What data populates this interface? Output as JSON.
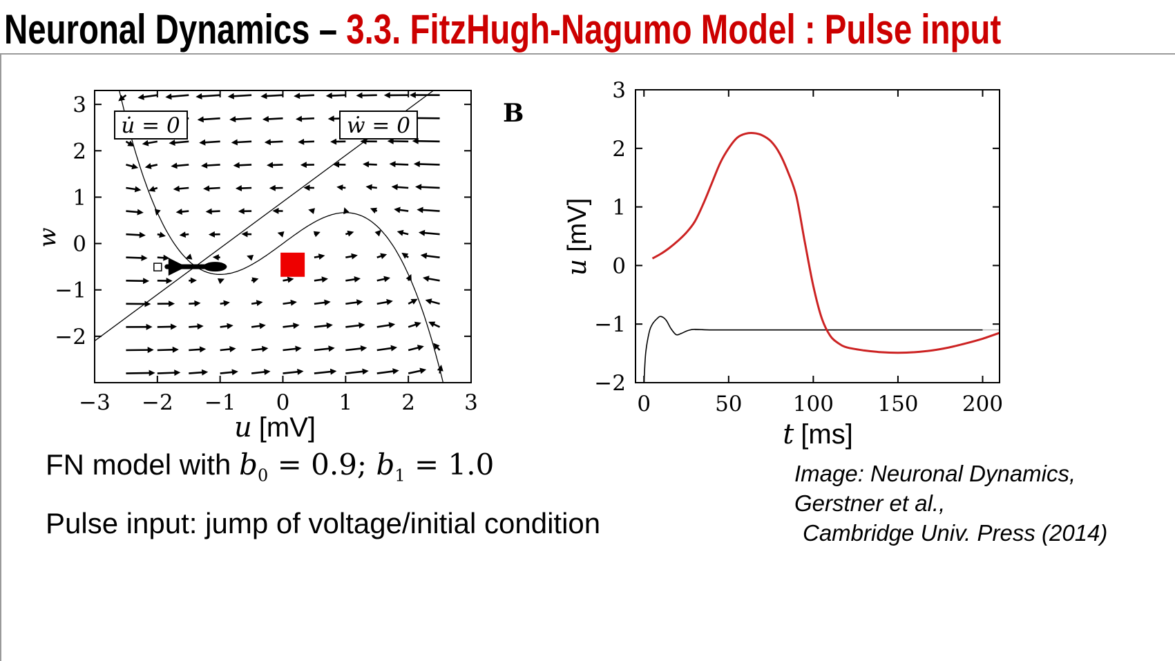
{
  "slide": {
    "title_main": "Neuronal Dynamics – ",
    "title_sub": "3.3.  FitzHugh-Nagumo Model : Pulse input"
  },
  "caption": {
    "prefix": "FN model with ",
    "b0_symbol": "b",
    "b0_sub": "0",
    "b0_eq": " = 0.9; ",
    "b1_symbol": "b",
    "b1_sub": "1",
    "b1_eq": " = 1.0"
  },
  "pulse_text": "Pulse input: jump of voltage/initial condition",
  "credit": {
    "line1": "Image: Neuronal Dynamics,",
    "line2": "Gerstner et al.,",
    "line3": "Cambridge Univ. Press (2014)"
  },
  "colors": {
    "trajectory": "#cc2222",
    "pulse_marker": "#ee0000",
    "title_accent": "#cc0000"
  },
  "chart_data": [
    {
      "type": "phase-plane",
      "title": "",
      "xlabel_symbol": "u",
      "xlabel_unit": "[mV]",
      "ylabel_symbol": "w",
      "xlim": [
        -3,
        3
      ],
      "ylim": [
        -3,
        3.3
      ],
      "xticks": [
        "−3",
        "−2",
        "−1",
        "0",
        "1",
        "2",
        "3"
      ],
      "xtick_values": [
        -3,
        -2,
        -1,
        0,
        1,
        2,
        3
      ],
      "yticks": [
        "3",
        "2",
        "1",
        "0",
        "−1",
        "−2"
      ],
      "ytick_values": [
        3,
        2,
        1,
        0,
        -1,
        -2
      ],
      "nullcline_labels": {
        "u_dot": "u̇ = 0",
        "w_dot": "ẇ = 0"
      },
      "u_nullcline": "w = u - u^3/3",
      "w_nullcline": "w = (u + 0.9) / 1.0",
      "fixed_point": {
        "u": -1.08,
        "w": -0.5
      },
      "pulse_marker": {
        "u": 0.15,
        "w": -0.45
      },
      "initial_marker": {
        "u": -2.0,
        "w": -0.5
      }
    },
    {
      "type": "line",
      "panel_label": "B",
      "title": "",
      "xlabel_symbol": "t",
      "xlabel_unit": "[ms]",
      "ylabel_symbol": "u",
      "ylabel_unit": "[mV]",
      "xlim": [
        -5,
        210
      ],
      "ylim": [
        -2,
        3
      ],
      "xticks": [
        "0",
        "50",
        "100",
        "150",
        "200"
      ],
      "xtick_values": [
        0,
        50,
        100,
        150,
        200
      ],
      "yticks": [
        "3",
        "2",
        "1",
        "0",
        "−1",
        "−2"
      ],
      "ytick_values": [
        3,
        2,
        1,
        0,
        -1,
        -2
      ],
      "resting_level": -1.1,
      "series": [
        {
          "x": [
            0,
            1,
            3,
            5,
            8,
            10,
            13,
            16,
            19,
            22,
            26,
            30,
            40,
            60,
            100,
            150,
            200
          ],
          "y": [
            -2.0,
            -1.5,
            -1.15,
            -1.0,
            -0.9,
            -0.87,
            -0.93,
            -1.08,
            -1.18,
            -1.16,
            -1.11,
            -1.09,
            -1.1,
            -1.1,
            -1.1,
            -1.1,
            -1.1
          ]
        },
        {
          "x": [
            5,
            10,
            15,
            20,
            25,
            30,
            35,
            40,
            45,
            50,
            55,
            60,
            65,
            70,
            75,
            80,
            85,
            90,
            95,
            100,
            105,
            110,
            115,
            120,
            130,
            140,
            150,
            160,
            170,
            180,
            190,
            200,
            210
          ],
          "y": [
            0.12,
            0.2,
            0.3,
            0.42,
            0.56,
            0.75,
            1.05,
            1.4,
            1.75,
            2.0,
            2.18,
            2.25,
            2.26,
            2.22,
            2.12,
            1.92,
            1.6,
            1.18,
            0.4,
            -0.35,
            -0.9,
            -1.2,
            -1.33,
            -1.4,
            -1.45,
            -1.48,
            -1.49,
            -1.48,
            -1.45,
            -1.4,
            -1.33,
            -1.25,
            -1.15
          ]
        }
      ]
    }
  ]
}
